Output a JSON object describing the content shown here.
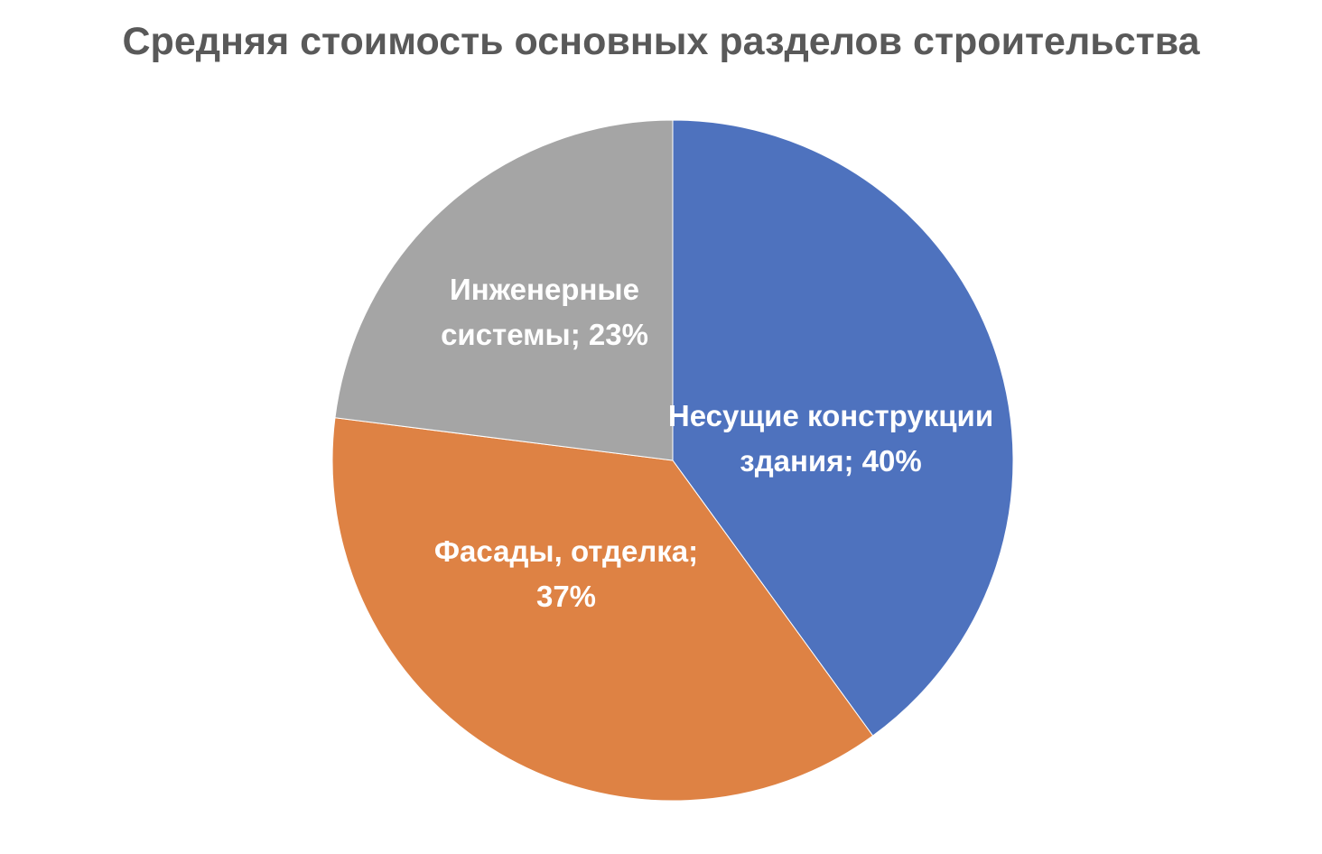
{
  "chart_data": {
    "type": "pie",
    "title": "Средняя стоимость основных разделов строительства",
    "slices": [
      {
        "name": "Несущие конструкции здания",
        "value": 40,
        "color": "#4E72BE",
        "label_lines": [
          "Несущие конструкции",
          "здания; 40%"
        ]
      },
      {
        "name": "Фасады, отделка",
        "value": 37,
        "color": "#DE8244",
        "label_lines": [
          "Фасады, отделка;",
          "37%"
        ]
      },
      {
        "name": "Инженерные системы",
        "value": 23,
        "color": "#A5A5A5",
        "label_lines": [
          "Инженерные",
          "системы; 23%"
        ]
      }
    ],
    "start_angle": "12 o'clock",
    "direction": "clockwise",
    "legend": "none"
  }
}
